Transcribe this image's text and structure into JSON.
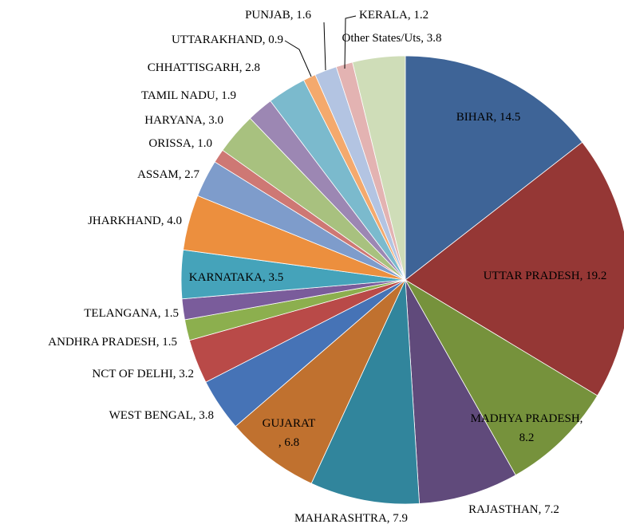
{
  "chart_data": {
    "type": "pie",
    "categories": [
      "BIHAR",
      "UTTAR PRADESH",
      "MADHYA PRADESH",
      "RAJASTHAN",
      "MAHARASHTRA",
      "GUJARAT",
      "WEST BENGAL",
      "NCT OF DELHI",
      "ANDHRA PRADESH",
      "TELANGANA",
      "KARNATAKA",
      "JHARKHAND",
      "ASSAM",
      "ORISSA",
      "HARYANA",
      "TAMIL NADU",
      "CHHATTISGARH",
      "UTTARAKHAND",
      "PUNJAB",
      "KERALA",
      "Other States/Uts"
    ],
    "values": [
      14.5,
      19.2,
      8.2,
      7.2,
      7.9,
      6.8,
      3.8,
      3.2,
      1.5,
      1.5,
      3.5,
      4.0,
      2.7,
      1.0,
      3.0,
      1.9,
      2.8,
      0.9,
      1.6,
      1.2,
      3.8
    ],
    "value_labels": [
      "14.5",
      "19.2",
      "8.2",
      "7.2",
      "7.9",
      "6.8",
      "3.8",
      "3.2",
      "1.5",
      "1.5",
      "3.5",
      "4.0",
      "2.7",
      "1.0",
      "3.0",
      "1.9",
      "2.8",
      "0.9",
      "1.6",
      "1.2",
      "3.8"
    ],
    "colors": [
      "#3E6497",
      "#953735",
      "#76923C",
      "#604A7B",
      "#31859C",
      "#C0712F",
      "#4673B6",
      "#B94A48",
      "#8CAF4E",
      "#7A5C9B",
      "#45A3BA",
      "#EC8F3E",
      "#7E9CCB",
      "#CE7874",
      "#A8C17F",
      "#9C87B3",
      "#7BBACD",
      "#F4A96D",
      "#B3C4E2",
      "#E3B3B2",
      "#CFDDB8"
    ]
  }
}
